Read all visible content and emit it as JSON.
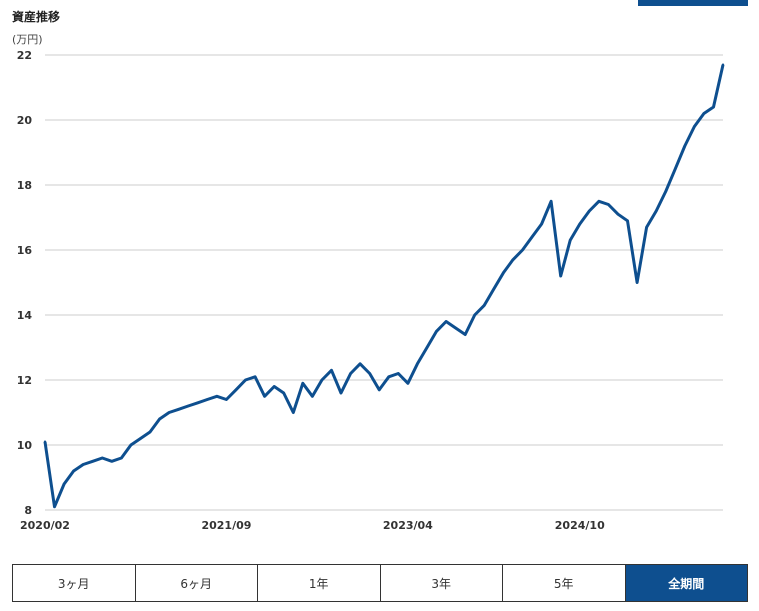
{
  "header": {
    "title": "資産推移",
    "unit": "(万円)"
  },
  "colors": {
    "line": "#0e4f8f",
    "grid": "#cccccc",
    "active": "#0e4f8f"
  },
  "range_selector": {
    "options": [
      "3ヶ月",
      "6ヶ月",
      "1年",
      "3年",
      "5年",
      "全期間"
    ],
    "selected": "全期間"
  },
  "chart_data": {
    "type": "line",
    "title": "資産推移",
    "ylabel": "(万円)",
    "xlabel": "",
    "ylim": [
      8,
      22
    ],
    "yticks": [
      8,
      10,
      12,
      14,
      16,
      18,
      20,
      22
    ],
    "xlim": [
      "2020-02",
      "2026-01"
    ],
    "xtick_labels": [
      "2020/02",
      "2021/09",
      "2023/04",
      "2024/10"
    ],
    "grid": true,
    "legend": "none",
    "series": [
      {
        "x": [
          "2020-02",
          "2020-03",
          "2020-04",
          "2020-05",
          "2020-06",
          "2020-07",
          "2020-08",
          "2020-09",
          "2020-10",
          "2020-11",
          "2020-12",
          "2021-01",
          "2021-02",
          "2021-03",
          "2021-04",
          "2021-05",
          "2021-06",
          "2021-07",
          "2021-08",
          "2021-09",
          "2021-10",
          "2021-11",
          "2021-12",
          "2022-01",
          "2022-02",
          "2022-03",
          "2022-04",
          "2022-05",
          "2022-06",
          "2022-07",
          "2022-08",
          "2022-09",
          "2022-10",
          "2022-11",
          "2022-12",
          "2023-01",
          "2023-02",
          "2023-03",
          "2023-04",
          "2023-05",
          "2023-06",
          "2023-07",
          "2023-08",
          "2023-09",
          "2023-10",
          "2023-11",
          "2023-12",
          "2024-01",
          "2024-02",
          "2024-03",
          "2024-04",
          "2024-05",
          "2024-06",
          "2024-07",
          "2024-08",
          "2024-09",
          "2024-10",
          "2024-11",
          "2024-12",
          "2025-01",
          "2025-02",
          "2025-03",
          "2025-04",
          "2025-05",
          "2025-06",
          "2025-07",
          "2025-08",
          "2025-09",
          "2025-10",
          "2025-11",
          "2025-12",
          "2026-01"
        ],
        "y": [
          10.1,
          8.1,
          8.8,
          9.2,
          9.4,
          9.5,
          9.6,
          9.5,
          9.6,
          10.0,
          10.2,
          10.4,
          10.8,
          11.0,
          11.1,
          11.2,
          11.3,
          11.4,
          11.5,
          11.4,
          11.7,
          12.0,
          12.1,
          11.5,
          11.8,
          11.6,
          11.0,
          11.9,
          11.5,
          12.0,
          12.3,
          11.6,
          12.2,
          12.5,
          12.2,
          11.7,
          12.1,
          12.2,
          11.9,
          12.5,
          13.0,
          13.5,
          13.8,
          13.6,
          13.4,
          14.0,
          14.3,
          14.8,
          15.3,
          15.7,
          16.0,
          16.4,
          16.8,
          17.5,
          15.2,
          16.3,
          16.8,
          17.2,
          17.5,
          17.4,
          17.1,
          16.9,
          15.0,
          16.7,
          17.2,
          17.8,
          18.5,
          19.2,
          19.8,
          20.2,
          20.4,
          21.7
        ]
      }
    ]
  }
}
